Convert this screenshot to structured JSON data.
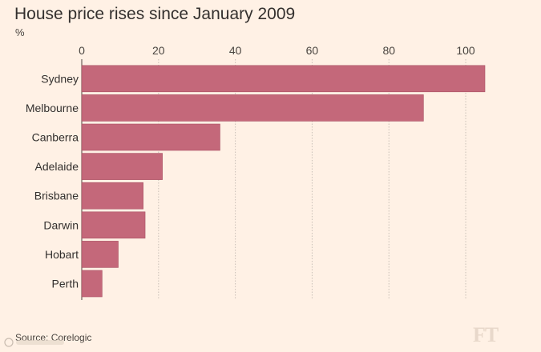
{
  "chart_data": {
    "type": "bar",
    "orientation": "horizontal",
    "title": "House price rises since January 2009",
    "unit": "%",
    "categories": [
      "Sydney",
      "Melbourne",
      "Canberra",
      "Adelaide",
      "Brisbane",
      "Darwin",
      "Hobart",
      "Perth"
    ],
    "values": [
      105,
      89,
      36,
      21,
      16,
      16.5,
      9.5,
      5.3
    ],
    "xlim": [
      0,
      105
    ],
    "xticks": [
      0,
      20,
      40,
      60,
      80,
      100
    ],
    "grid": true,
    "bar_color": "#c4687a"
  },
  "footer": {
    "source": "Source: Corelogic",
    "logo": "FT"
  }
}
